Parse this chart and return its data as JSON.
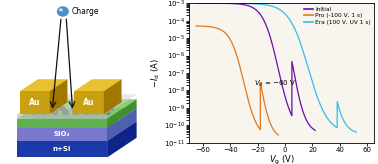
{
  "legend_entries": [
    "Initial",
    "Pro (-100 V, 1 s)",
    "Era (100 V, UV 1 s)"
  ],
  "legend_colors": [
    "#6a0dad",
    "#e07820",
    "#30c0e8"
  ],
  "annotation": "$V_d$ = -60 V",
  "bg_color": "#ffffff",
  "plot_bg": "#f8f4ee",
  "xlim": [
    -70,
    65
  ],
  "ylim_exp": [
    -11,
    -3
  ],
  "xticks": [
    -60,
    -40,
    -20,
    0,
    20,
    40,
    60
  ],
  "schematic": {
    "bg": "#c8c0b0",
    "nsi_color": "#1a3aaa",
    "sio2_color": "#7878cc",
    "semi_color": "#60b050",
    "dot_color": "#607060",
    "au_color": "#c8a010",
    "charge_color": "#4a8fd0",
    "arrow_color": "#111111"
  }
}
